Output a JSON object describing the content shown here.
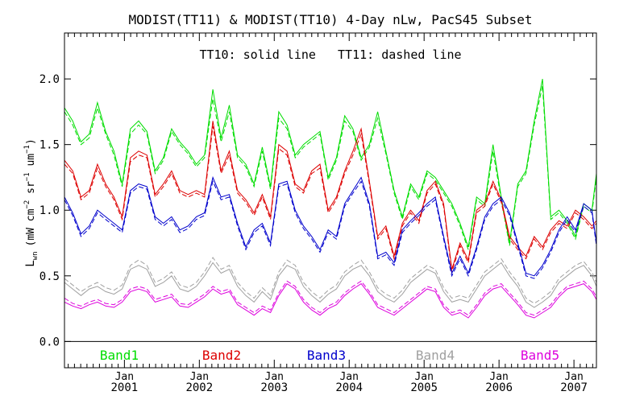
{
  "chart_data": {
    "type": "line",
    "title": "MODIST(TT11) & MODIST(TT10) 4-Day nLw, PacS45 Subset",
    "subtitle": "TT10: solid line   TT11: dashed line",
    "ylabel": "L_wn (mW cm^-2 sr^-1 um^-1)",
    "ylabel_parts": {
      "main": "L",
      "main_sub": "wn",
      "unit_open": "(mW cm",
      "exp1": "−2",
      "sr": " sr",
      "exp2": "−1",
      "um": " um",
      "exp3": "−1",
      "close": ")"
    },
    "xlim": [
      2000.2,
      2007.3
    ],
    "ylim": [
      -0.2,
      2.35
    ],
    "grid": false,
    "legend_position": "bottom-inside",
    "x_ticks": [
      {
        "x": 2001.0,
        "top": "Jan",
        "bottom": "2001"
      },
      {
        "x": 2002.0,
        "top": "Jan",
        "bottom": "2002"
      },
      {
        "x": 2003.0,
        "top": "Jan",
        "bottom": "2003"
      },
      {
        "x": 2004.0,
        "top": "Jan",
        "bottom": "2004"
      },
      {
        "x": 2005.0,
        "top": "Jan",
        "bottom": "2005"
      },
      {
        "x": 2006.0,
        "top": "Jan",
        "bottom": "2006"
      },
      {
        "x": 2007.0,
        "top": "Jan",
        "bottom": "2007"
      }
    ],
    "y_ticks": [
      {
        "value": 0.0,
        "label": "0.0"
      },
      {
        "value": 0.5,
        "label": "0.5"
      },
      {
        "value": 1.0,
        "label": "1.0"
      },
      {
        "value": 1.5,
        "label": "1.5"
      },
      {
        "value": 2.0,
        "label": "2.0"
      }
    ],
    "zero_line": 0.0,
    "series": [
      {
        "name": "Band1",
        "color": "#00dd00",
        "x": [
          2000.2,
          2000.31,
          2000.42,
          2000.53,
          2000.64,
          2000.75,
          2000.86,
          2000.97,
          2001.08,
          2001.19,
          2001.3,
          2001.41,
          2001.52,
          2001.63,
          2001.74,
          2001.85,
          2001.96,
          2002.07,
          2002.18,
          2002.29,
          2002.4,
          2002.51,
          2002.62,
          2002.73,
          2002.84,
          2002.95,
          2003.06,
          2003.17,
          2003.28,
          2003.39,
          2003.5,
          2003.61,
          2003.72,
          2003.83,
          2003.94,
          2004.05,
          2004.16,
          2004.27,
          2004.38,
          2004.49,
          2004.6,
          2004.71,
          2004.82,
          2004.93,
          2005.04,
          2005.15,
          2005.26,
          2005.37,
          2005.48,
          2005.59,
          2005.7,
          2005.81,
          2005.92,
          2006.03,
          2006.14,
          2006.25,
          2006.36,
          2006.47,
          2006.58,
          2006.69,
          2006.8,
          2006.91,
          2007.02,
          2007.13,
          2007.24,
          2007.3
        ],
        "solid": [
          1.78,
          1.68,
          1.52,
          1.58,
          1.82,
          1.6,
          1.45,
          1.2,
          1.62,
          1.68,
          1.6,
          1.3,
          1.4,
          1.62,
          1.52,
          1.45,
          1.35,
          1.42,
          1.92,
          1.55,
          1.8,
          1.42,
          1.35,
          1.2,
          1.48,
          1.18,
          1.75,
          1.65,
          1.42,
          1.5,
          1.55,
          1.6,
          1.25,
          1.4,
          1.72,
          1.62,
          1.4,
          1.5,
          1.75,
          1.45,
          1.15,
          0.95,
          1.2,
          1.1,
          1.3,
          1.25,
          1.15,
          1.05,
          0.9,
          0.72,
          1.1,
          1.05,
          1.5,
          1.1,
          0.75,
          1.2,
          1.3,
          1.68,
          2.0,
          0.95,
          1.0,
          0.92,
          0.8,
          1.05,
          1.0,
          1.28
        ],
        "dashed": [
          1.75,
          1.65,
          1.5,
          1.55,
          1.78,
          1.58,
          1.42,
          1.18,
          1.58,
          1.65,
          1.58,
          1.28,
          1.38,
          1.6,
          1.5,
          1.43,
          1.33,
          1.4,
          1.85,
          1.52,
          1.75,
          1.4,
          1.33,
          1.18,
          1.45,
          1.16,
          1.7,
          1.62,
          1.4,
          1.48,
          1.53,
          1.58,
          1.23,
          1.38,
          1.68,
          1.6,
          1.38,
          1.48,
          1.7,
          1.43,
          1.13,
          0.93,
          1.18,
          1.08,
          1.28,
          1.23,
          1.13,
          1.03,
          0.88,
          0.7,
          1.08,
          1.03,
          1.45,
          1.08,
          0.73,
          1.18,
          1.28,
          1.65,
          1.95,
          0.93,
          0.98,
          0.9,
          0.78,
          1.03,
          0.98,
          1.25
        ]
      },
      {
        "name": "Band2",
        "color": "#dd0000",
        "x": [
          2000.2,
          2000.31,
          2000.42,
          2000.53,
          2000.64,
          2000.75,
          2000.86,
          2000.97,
          2001.08,
          2001.19,
          2001.3,
          2001.41,
          2001.52,
          2001.63,
          2001.74,
          2001.85,
          2001.96,
          2002.07,
          2002.18,
          2002.29,
          2002.4,
          2002.51,
          2002.62,
          2002.73,
          2002.84,
          2002.95,
          2003.06,
          2003.17,
          2003.28,
          2003.39,
          2003.5,
          2003.61,
          2003.72,
          2003.83,
          2003.94,
          2004.05,
          2004.16,
          2004.27,
          2004.38,
          2004.49,
          2004.6,
          2004.71,
          2004.82,
          2004.93,
          2005.04,
          2005.15,
          2005.26,
          2005.37,
          2005.48,
          2005.59,
          2005.7,
          2005.81,
          2005.92,
          2006.03,
          2006.14,
          2006.25,
          2006.36,
          2006.47,
          2006.58,
          2006.69,
          2006.8,
          2006.91,
          2007.02,
          2007.13,
          2007.24,
          2007.3
        ],
        "solid": [
          1.38,
          1.3,
          1.1,
          1.15,
          1.35,
          1.2,
          1.1,
          0.95,
          1.4,
          1.45,
          1.42,
          1.12,
          1.2,
          1.3,
          1.15,
          1.12,
          1.15,
          1.12,
          1.68,
          1.3,
          1.45,
          1.15,
          1.08,
          0.98,
          1.12,
          0.95,
          1.5,
          1.45,
          1.2,
          1.15,
          1.3,
          1.35,
          1.0,
          1.1,
          1.3,
          1.45,
          1.62,
          1.22,
          0.8,
          0.88,
          0.65,
          0.9,
          1.0,
          0.92,
          1.15,
          1.22,
          1.05,
          0.55,
          0.75,
          0.62,
          1.0,
          1.05,
          1.22,
          1.08,
          0.8,
          0.72,
          0.65,
          0.8,
          0.72,
          0.85,
          0.92,
          0.88,
          1.0,
          0.95,
          0.88,
          0.92
        ],
        "dashed": [
          1.35,
          1.28,
          1.08,
          1.13,
          1.32,
          1.18,
          1.08,
          0.93,
          1.37,
          1.42,
          1.4,
          1.1,
          1.18,
          1.28,
          1.13,
          1.1,
          1.13,
          1.1,
          1.64,
          1.28,
          1.42,
          1.13,
          1.06,
          0.96,
          1.1,
          0.93,
          1.47,
          1.42,
          1.18,
          1.13,
          1.28,
          1.32,
          0.98,
          1.08,
          1.28,
          1.42,
          1.58,
          1.2,
          0.78,
          0.86,
          0.63,
          0.88,
          0.98,
          0.9,
          1.13,
          1.2,
          1.03,
          0.53,
          0.73,
          0.6,
          0.98,
          1.03,
          1.2,
          1.06,
          0.78,
          0.7,
          0.63,
          0.78,
          0.7,
          0.83,
          0.9,
          0.86,
          0.98,
          0.93,
          0.86,
          0.9
        ]
      },
      {
        "name": "Band3",
        "color": "#0000cc",
        "x": [
          2000.2,
          2000.31,
          2000.42,
          2000.53,
          2000.64,
          2000.75,
          2000.86,
          2000.97,
          2001.08,
          2001.19,
          2001.3,
          2001.41,
          2001.52,
          2001.63,
          2001.74,
          2001.85,
          2001.96,
          2002.07,
          2002.18,
          2002.29,
          2002.4,
          2002.51,
          2002.62,
          2002.73,
          2002.84,
          2002.95,
          2003.06,
          2003.17,
          2003.28,
          2003.39,
          2003.5,
          2003.61,
          2003.72,
          2003.83,
          2003.94,
          2004.05,
          2004.16,
          2004.27,
          2004.38,
          2004.49,
          2004.6,
          2004.71,
          2004.82,
          2004.93,
          2005.04,
          2005.15,
          2005.26,
          2005.37,
          2005.48,
          2005.59,
          2005.7,
          2005.81,
          2005.92,
          2006.03,
          2006.14,
          2006.25,
          2006.36,
          2006.47,
          2006.58,
          2006.69,
          2006.8,
          2006.91,
          2007.02,
          2007.13,
          2007.24,
          2007.3
        ],
        "solid": [
          1.1,
          0.98,
          0.82,
          0.88,
          1.0,
          0.95,
          0.9,
          0.85,
          1.15,
          1.2,
          1.18,
          0.95,
          0.9,
          0.95,
          0.85,
          0.88,
          0.95,
          0.98,
          1.25,
          1.1,
          1.12,
          0.9,
          0.72,
          0.85,
          0.9,
          0.75,
          1.2,
          1.22,
          1.0,
          0.88,
          0.8,
          0.7,
          0.85,
          0.8,
          1.05,
          1.15,
          1.25,
          1.05,
          0.65,
          0.68,
          0.6,
          0.85,
          0.92,
          0.98,
          1.05,
          1.1,
          0.8,
          0.52,
          0.65,
          0.52,
          0.72,
          0.95,
          1.05,
          1.1,
          0.98,
          0.75,
          0.52,
          0.5,
          0.58,
          0.7,
          0.85,
          0.95,
          0.85,
          1.05,
          1.0,
          0.75
        ],
        "dashed": [
          1.08,
          0.96,
          0.8,
          0.86,
          0.98,
          0.93,
          0.88,
          0.83,
          1.13,
          1.18,
          1.16,
          0.93,
          0.88,
          0.93,
          0.83,
          0.86,
          0.93,
          0.96,
          1.22,
          1.08,
          1.1,
          0.88,
          0.7,
          0.83,
          0.88,
          0.73,
          1.18,
          1.2,
          0.98,
          0.86,
          0.78,
          0.68,
          0.83,
          0.78,
          1.03,
          1.13,
          1.22,
          1.03,
          0.63,
          0.66,
          0.58,
          0.83,
          0.9,
          0.96,
          1.03,
          1.08,
          0.78,
          0.5,
          0.63,
          0.5,
          0.7,
          0.93,
          1.03,
          1.08,
          0.96,
          0.73,
          0.5,
          0.48,
          0.56,
          0.68,
          0.83,
          0.93,
          0.83,
          1.03,
          0.98,
          0.73
        ]
      },
      {
        "name": "Band4",
        "color": "#a0a0a0",
        "x": [
          2000.2,
          2000.31,
          2000.42,
          2000.53,
          2000.64,
          2000.75,
          2000.86,
          2000.97,
          2001.08,
          2001.19,
          2001.3,
          2001.41,
          2001.52,
          2001.63,
          2001.74,
          2001.85,
          2001.96,
          2002.07,
          2002.18,
          2002.29,
          2002.4,
          2002.51,
          2002.62,
          2002.73,
          2002.84,
          2002.95,
          2003.06,
          2003.17,
          2003.28,
          2003.39,
          2003.5,
          2003.61,
          2003.72,
          2003.83,
          2003.94,
          2004.05,
          2004.16,
          2004.27,
          2004.38,
          2004.49,
          2004.6,
          2004.71,
          2004.82,
          2004.93,
          2005.04,
          2005.15,
          2005.26,
          2005.37,
          2005.48,
          2005.59,
          2005.7,
          2005.81,
          2005.92,
          2006.03,
          2006.14,
          2006.25,
          2006.36,
          2006.47,
          2006.58,
          2006.69,
          2006.8,
          2006.91,
          2007.02,
          2007.13,
          2007.24,
          2007.3
        ],
        "solid": [
          0.45,
          0.4,
          0.35,
          0.4,
          0.42,
          0.38,
          0.36,
          0.4,
          0.55,
          0.58,
          0.55,
          0.42,
          0.45,
          0.5,
          0.4,
          0.38,
          0.42,
          0.5,
          0.6,
          0.52,
          0.55,
          0.42,
          0.35,
          0.3,
          0.38,
          0.32,
          0.5,
          0.58,
          0.55,
          0.42,
          0.35,
          0.3,
          0.36,
          0.4,
          0.5,
          0.55,
          0.58,
          0.5,
          0.38,
          0.33,
          0.3,
          0.36,
          0.45,
          0.5,
          0.55,
          0.52,
          0.38,
          0.3,
          0.32,
          0.3,
          0.4,
          0.5,
          0.55,
          0.6,
          0.5,
          0.42,
          0.3,
          0.26,
          0.3,
          0.35,
          0.45,
          0.5,
          0.55,
          0.58,
          0.5,
          0.42
        ],
        "dashed": [
          0.48,
          0.43,
          0.38,
          0.42,
          0.45,
          0.41,
          0.39,
          0.43,
          0.58,
          0.62,
          0.58,
          0.45,
          0.48,
          0.53,
          0.43,
          0.41,
          0.45,
          0.53,
          0.64,
          0.55,
          0.58,
          0.45,
          0.38,
          0.33,
          0.41,
          0.35,
          0.53,
          0.62,
          0.58,
          0.45,
          0.38,
          0.33,
          0.39,
          0.43,
          0.53,
          0.58,
          0.62,
          0.53,
          0.41,
          0.36,
          0.33,
          0.39,
          0.48,
          0.53,
          0.58,
          0.55,
          0.41,
          0.33,
          0.35,
          0.33,
          0.43,
          0.53,
          0.58,
          0.63,
          0.53,
          0.45,
          0.33,
          0.29,
          0.33,
          0.38,
          0.48,
          0.53,
          0.58,
          0.61,
          0.53,
          0.45
        ]
      },
      {
        "name": "Band5",
        "color": "#dd00dd",
        "x": [
          2000.2,
          2000.31,
          2000.42,
          2000.53,
          2000.64,
          2000.75,
          2000.86,
          2000.97,
          2001.08,
          2001.19,
          2001.3,
          2001.41,
          2001.52,
          2001.63,
          2001.74,
          2001.85,
          2001.96,
          2002.07,
          2002.18,
          2002.29,
          2002.4,
          2002.51,
          2002.62,
          2002.73,
          2002.84,
          2002.95,
          2003.06,
          2003.17,
          2003.28,
          2003.39,
          2003.5,
          2003.61,
          2003.72,
          2003.83,
          2003.94,
          2004.05,
          2004.16,
          2004.27,
          2004.38,
          2004.49,
          2004.6,
          2004.71,
          2004.82,
          2004.93,
          2005.04,
          2005.15,
          2005.26,
          2005.37,
          2005.48,
          2005.59,
          2005.7,
          2005.81,
          2005.92,
          2006.03,
          2006.14,
          2006.25,
          2006.36,
          2006.47,
          2006.58,
          2006.69,
          2006.8,
          2006.91,
          2007.02,
          2007.13,
          2007.24,
          2007.3
        ],
        "solid": [
          0.3,
          0.27,
          0.25,
          0.28,
          0.3,
          0.27,
          0.26,
          0.3,
          0.38,
          0.4,
          0.38,
          0.3,
          0.32,
          0.34,
          0.27,
          0.26,
          0.3,
          0.34,
          0.4,
          0.36,
          0.38,
          0.28,
          0.24,
          0.2,
          0.25,
          0.22,
          0.35,
          0.44,
          0.4,
          0.3,
          0.24,
          0.2,
          0.25,
          0.28,
          0.35,
          0.4,
          0.44,
          0.36,
          0.26,
          0.23,
          0.2,
          0.25,
          0.3,
          0.35,
          0.4,
          0.38,
          0.26,
          0.2,
          0.22,
          0.18,
          0.26,
          0.35,
          0.4,
          0.42,
          0.35,
          0.28,
          0.2,
          0.18,
          0.22,
          0.26,
          0.34,
          0.4,
          0.42,
          0.44,
          0.38,
          0.32
        ],
        "dashed": [
          0.33,
          0.29,
          0.27,
          0.3,
          0.32,
          0.29,
          0.28,
          0.32,
          0.4,
          0.42,
          0.4,
          0.32,
          0.34,
          0.36,
          0.29,
          0.28,
          0.32,
          0.36,
          0.42,
          0.38,
          0.4,
          0.3,
          0.26,
          0.22,
          0.27,
          0.24,
          0.37,
          0.46,
          0.42,
          0.32,
          0.26,
          0.22,
          0.27,
          0.3,
          0.37,
          0.42,
          0.46,
          0.38,
          0.28,
          0.25,
          0.22,
          0.27,
          0.32,
          0.37,
          0.42,
          0.4,
          0.28,
          0.22,
          0.24,
          0.2,
          0.28,
          0.37,
          0.42,
          0.44,
          0.37,
          0.3,
          0.22,
          0.2,
          0.24,
          0.28,
          0.36,
          0.42,
          0.44,
          0.46,
          0.4,
          0.34
        ]
      }
    ]
  }
}
